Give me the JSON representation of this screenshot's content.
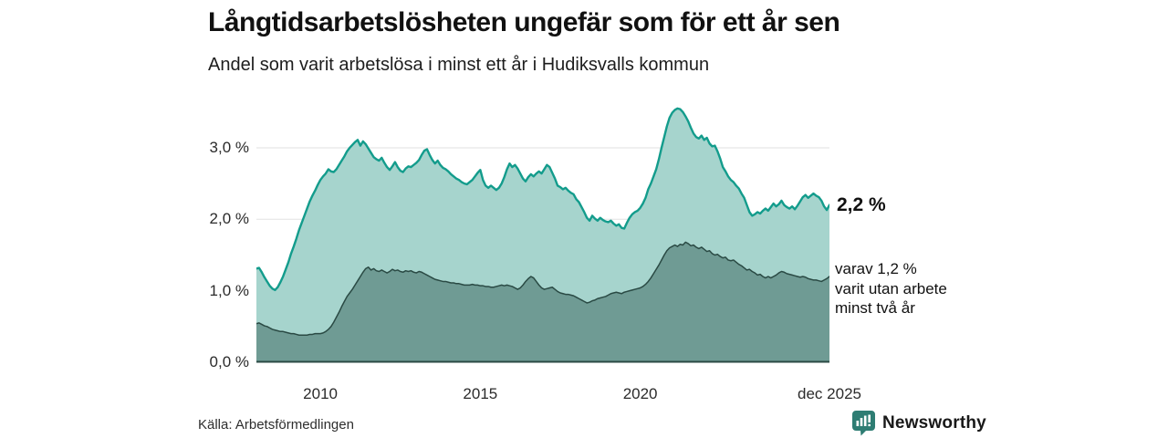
{
  "header": {
    "title": "Långtidsarbetslösheten ungefär som för ett år sen",
    "subtitle": "Andel som varit arbetslösa i minst ett år i Hudiksvalls kommun"
  },
  "annotations": {
    "total_label": "2,2 %",
    "subset_lines": [
      "varav 1,2 %",
      "varit utan arbete",
      "minst två år"
    ]
  },
  "footer": {
    "source": "Källa: Arbetsförmedlingen",
    "brand": "Newsworthy",
    "brand_color": "#2e7d73"
  },
  "chart_data": {
    "type": "area",
    "title": "Långtidsarbetslösheten ungefär som för ett år sen",
    "subtitle": "Andel som varit arbetslösa i minst ett år i Hudiksvalls kommun",
    "x_start_year": 2008,
    "months": 216,
    "grid": "horizontal",
    "grid_color": "#e2e2e2",
    "ylim": [
      0,
      3.79
    ],
    "y_ticks": [
      {
        "label": "3,0 %",
        "value": 3.0
      },
      {
        "label": "2,0 %",
        "value": 2.0
      },
      {
        "label": "1,0 %",
        "value": 1.0
      },
      {
        "label": "0,0 %",
        "value": 0.0
      }
    ],
    "x_ticks": [
      {
        "label": "2010",
        "year": 2010.0
      },
      {
        "label": "2015",
        "year": 2015.0
      },
      {
        "label": "2020",
        "year": 2020.0
      },
      {
        "label": "dec 2025",
        "year": 2025.917
      }
    ],
    "last_values": {
      "total": "2,2 %",
      "two_years": "1,2 %"
    },
    "series": [
      {
        "name": "Andel som varit arbetslösa i minst ett år",
        "line_color": "#139c8c",
        "fill_color": "#a6d4cd",
        "line_width": 2.4,
        "values": [
          1.31,
          1.32,
          1.26,
          1.19,
          1.13,
          1.07,
          1.03,
          1.01,
          1.05,
          1.12,
          1.2,
          1.3,
          1.4,
          1.52,
          1.62,
          1.73,
          1.85,
          1.95,
          2.05,
          2.15,
          2.25,
          2.33,
          2.4,
          2.48,
          2.55,
          2.6,
          2.64,
          2.7,
          2.67,
          2.66,
          2.7,
          2.76,
          2.82,
          2.88,
          2.95,
          3.0,
          3.04,
          3.08,
          3.11,
          3.03,
          3.09,
          3.05,
          2.99,
          2.93,
          2.87,
          2.84,
          2.82,
          2.86,
          2.79,
          2.73,
          2.69,
          2.74,
          2.8,
          2.73,
          2.68,
          2.66,
          2.71,
          2.74,
          2.73,
          2.76,
          2.79,
          2.83,
          2.9,
          2.96,
          2.98,
          2.9,
          2.83,
          2.78,
          2.82,
          2.76,
          2.72,
          2.7,
          2.67,
          2.63,
          2.6,
          2.57,
          2.55,
          2.52,
          2.5,
          2.49,
          2.52,
          2.55,
          2.6,
          2.65,
          2.69,
          2.55,
          2.47,
          2.44,
          2.47,
          2.44,
          2.41,
          2.44,
          2.5,
          2.59,
          2.7,
          2.78,
          2.73,
          2.76,
          2.71,
          2.64,
          2.57,
          2.53,
          2.59,
          2.63,
          2.6,
          2.64,
          2.67,
          2.64,
          2.7,
          2.76,
          2.73,
          2.65,
          2.57,
          2.47,
          2.45,
          2.42,
          2.44,
          2.4,
          2.37,
          2.35,
          2.28,
          2.24,
          2.17,
          2.1,
          2.02,
          1.98,
          2.05,
          2.01,
          1.98,
          2.02,
          1.99,
          1.97,
          1.96,
          1.98,
          1.94,
          1.91,
          1.93,
          1.88,
          1.87,
          1.95,
          2.02,
          2.07,
          2.1,
          2.12,
          2.16,
          2.22,
          2.3,
          2.42,
          2.5,
          2.6,
          2.7,
          2.84,
          3.0,
          3.15,
          3.3,
          3.42,
          3.49,
          3.53,
          3.55,
          3.54,
          3.5,
          3.44,
          3.37,
          3.28,
          3.2,
          3.15,
          3.13,
          3.17,
          3.11,
          3.14,
          3.06,
          3.02,
          3.03,
          2.95,
          2.85,
          2.73,
          2.67,
          2.6,
          2.55,
          2.52,
          2.47,
          2.43,
          2.36,
          2.3,
          2.2,
          2.1,
          2.05,
          2.07,
          2.1,
          2.08,
          2.12,
          2.15,
          2.12,
          2.17,
          2.22,
          2.18,
          2.21,
          2.26,
          2.2,
          2.17,
          2.15,
          2.18,
          2.14,
          2.19,
          2.25,
          2.31,
          2.34,
          2.3,
          2.33,
          2.36,
          2.33,
          2.31,
          2.26,
          2.18,
          2.13,
          2.2
        ]
      },
      {
        "name": "Varav utan arbete minst två år",
        "line_color": "#2a4a44",
        "fill_color": "#6f9b94",
        "line_width": 1.5,
        "values": [
          0.54,
          0.55,
          0.53,
          0.51,
          0.5,
          0.48,
          0.46,
          0.45,
          0.44,
          0.43,
          0.43,
          0.42,
          0.41,
          0.4,
          0.4,
          0.39,
          0.38,
          0.38,
          0.38,
          0.38,
          0.39,
          0.39,
          0.4,
          0.4,
          0.4,
          0.41,
          0.43,
          0.46,
          0.5,
          0.56,
          0.63,
          0.7,
          0.78,
          0.85,
          0.92,
          0.97,
          1.02,
          1.08,
          1.14,
          1.2,
          1.26,
          1.31,
          1.33,
          1.29,
          1.31,
          1.28,
          1.27,
          1.29,
          1.27,
          1.25,
          1.27,
          1.3,
          1.28,
          1.29,
          1.27,
          1.26,
          1.28,
          1.27,
          1.28,
          1.26,
          1.25,
          1.27,
          1.26,
          1.24,
          1.22,
          1.2,
          1.18,
          1.16,
          1.15,
          1.14,
          1.13,
          1.13,
          1.12,
          1.11,
          1.11,
          1.1,
          1.1,
          1.09,
          1.08,
          1.08,
          1.08,
          1.09,
          1.08,
          1.08,
          1.07,
          1.07,
          1.06,
          1.06,
          1.05,
          1.05,
          1.06,
          1.07,
          1.08,
          1.07,
          1.08,
          1.07,
          1.06,
          1.04,
          1.02,
          1.04,
          1.08,
          1.13,
          1.17,
          1.2,
          1.18,
          1.13,
          1.08,
          1.04,
          1.02,
          1.03,
          1.04,
          1.05,
          1.02,
          0.99,
          0.97,
          0.96,
          0.95,
          0.95,
          0.94,
          0.93,
          0.91,
          0.89,
          0.87,
          0.85,
          0.83,
          0.84,
          0.86,
          0.87,
          0.89,
          0.9,
          0.91,
          0.92,
          0.94,
          0.96,
          0.97,
          0.98,
          0.97,
          0.96,
          0.98,
          0.99,
          1.0,
          1.01,
          1.02,
          1.03,
          1.04,
          1.06,
          1.09,
          1.13,
          1.18,
          1.24,
          1.3,
          1.36,
          1.43,
          1.5,
          1.56,
          1.6,
          1.62,
          1.64,
          1.62,
          1.65,
          1.64,
          1.68,
          1.66,
          1.63,
          1.64,
          1.61,
          1.59,
          1.61,
          1.58,
          1.55,
          1.56,
          1.52,
          1.5,
          1.51,
          1.48,
          1.46,
          1.47,
          1.43,
          1.42,
          1.43,
          1.4,
          1.37,
          1.35,
          1.32,
          1.29,
          1.3,
          1.27,
          1.25,
          1.22,
          1.23,
          1.2,
          1.18,
          1.2,
          1.18,
          1.2,
          1.22,
          1.25,
          1.27,
          1.26,
          1.24,
          1.23,
          1.22,
          1.21,
          1.2,
          1.19,
          1.2,
          1.19,
          1.17,
          1.16,
          1.15,
          1.15,
          1.14,
          1.13,
          1.15,
          1.17,
          1.2
        ]
      }
    ]
  }
}
